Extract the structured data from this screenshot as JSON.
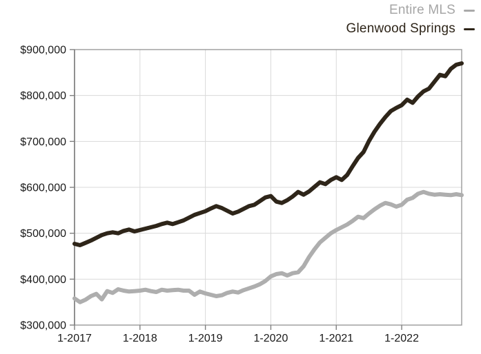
{
  "legend": {
    "items": [
      {
        "label": "Entire MLS",
        "series_key": "entire_mls"
      },
      {
        "label": "Glenwood Springs",
        "series_key": "glenwood_springs"
      }
    ]
  },
  "colors": {
    "entire_mls_line": "#aeaeae",
    "glenwood_line": "#2e2519",
    "axis_border": "#999999",
    "axis_line": "#7f7f7f",
    "gridline": "#d9d9d9",
    "tick_label": "#1a1a1a",
    "background": "#ffffff"
  },
  "chart_data": {
    "type": "line",
    "title": "",
    "xlabel": "",
    "ylabel": "",
    "grid": true,
    "legend_position": "top-right",
    "x_unit": "month",
    "x_range": [
      "1-2017",
      "12-2022"
    ],
    "x_tick_labels": [
      "1-2017",
      "1-2018",
      "1-2019",
      "1-2020",
      "1-2021",
      "1-2022"
    ],
    "x_tick_month_index": [
      0,
      12,
      24,
      36,
      48,
      60
    ],
    "ylim": [
      300000,
      900000
    ],
    "y_tick_values": [
      300000,
      400000,
      500000,
      600000,
      700000,
      800000,
      900000
    ],
    "y_tick_labels": [
      "$300,000",
      "$400,000",
      "$500,000",
      "$600,000",
      "$700,000",
      "$800,000",
      "$900,000"
    ],
    "series": [
      {
        "name": "Entire MLS",
        "color": "#aeaeae",
        "values": [
          358000,
          350000,
          355000,
          363000,
          368000,
          356000,
          374000,
          370000,
          378000,
          375000,
          373000,
          374000,
          375000,
          377000,
          374000,
          372000,
          377000,
          375000,
          376000,
          377000,
          375000,
          375000,
          366000,
          373000,
          369000,
          366000,
          363000,
          365000,
          370000,
          373000,
          371000,
          376000,
          380000,
          384000,
          389000,
          396000,
          406000,
          411000,
          413000,
          408000,
          413000,
          415000,
          428000,
          448000,
          465000,
          480000,
          490000,
          500000,
          507000,
          513000,
          519000,
          527000,
          536000,
          533000,
          543000,
          552000,
          560000,
          566000,
          563000,
          558000,
          562000,
          573000,
          577000,
          586000,
          590000,
          586000,
          584000,
          585000,
          584000,
          583000,
          585000,
          583000
        ]
      },
      {
        "name": "Glenwood Springs",
        "color": "#2e2519",
        "values": [
          477000,
          474000,
          479000,
          484000,
          490000,
          496000,
          500000,
          502000,
          500000,
          505000,
          508000,
          504000,
          507000,
          510000,
          513000,
          516000,
          520000,
          523000,
          520000,
          524000,
          528000,
          534000,
          540000,
          544000,
          548000,
          554000,
          559000,
          555000,
          549000,
          543000,
          547000,
          553000,
          559000,
          562000,
          570000,
          578000,
          581000,
          569000,
          566000,
          572000,
          580000,
          590000,
          584000,
          591000,
          601000,
          611000,
          607000,
          616000,
          622000,
          616000,
          627000,
          646000,
          664000,
          677000,
          701000,
          721000,
          738000,
          753000,
          766000,
          773000,
          779000,
          791000,
          784000,
          798000,
          809000,
          815000,
          830000,
          845000,
          842000,
          858000,
          867000,
          870000
        ]
      }
    ]
  }
}
